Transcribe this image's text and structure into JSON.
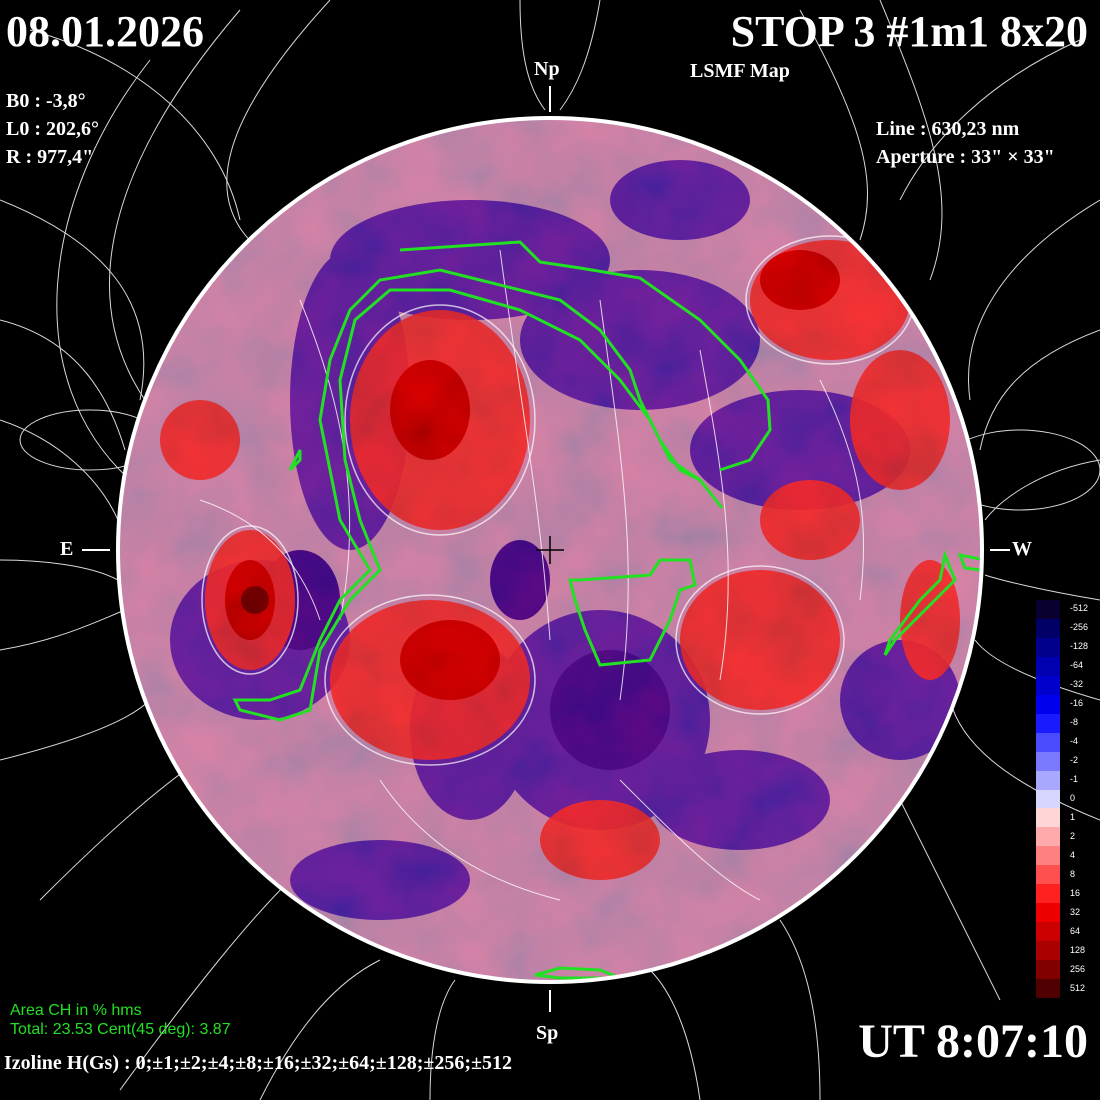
{
  "header": {
    "date": "08.01.2026",
    "title": "STOP 3 #1m1 8x20",
    "subtitle": "LSMF  Map"
  },
  "params": {
    "b0": "B0 : -3,8°",
    "l0": "L0 : 202,6°",
    "r": "R  : 977,4\"",
    "line": "Line :  630,23 nm",
    "aperture": "Aperture : 33\" × 33\""
  },
  "directions": {
    "north": "Np",
    "south": "Sp",
    "east": "E",
    "west": "W"
  },
  "footer": {
    "ch_title": "Area CH in % hms",
    "ch_values": "Total: 23.53    Cent(45 deg): 3.87",
    "ut": "UT 8:07:10",
    "izoline": "Izoline H(Gs) : 0;±1;±2;±4;±8;±16;±32;±64;±128;±256;±512"
  },
  "scale": {
    "labels": [
      "-512",
      "-256",
      "-128",
      "-64",
      "-32",
      "-16",
      "-8",
      "-4",
      "-2",
      "-1",
      "0",
      "1",
      "2",
      "4",
      "8",
      "16",
      "32",
      "64",
      "128",
      "256",
      "512"
    ],
    "colors": [
      "#0a0030",
      "#000066",
      "#00008c",
      "#0000b0",
      "#0000cc",
      "#0000ee",
      "#1a1aff",
      "#4a4aff",
      "#7a7aff",
      "#a8a8ff",
      "#d6d6ff",
      "#ffd6d6",
      "#ffaaaa",
      "#ff8080",
      "#ff5050",
      "#ff2020",
      "#ee0000",
      "#cc0000",
      "#aa0000",
      "#800000",
      "#500000"
    ]
  }
}
